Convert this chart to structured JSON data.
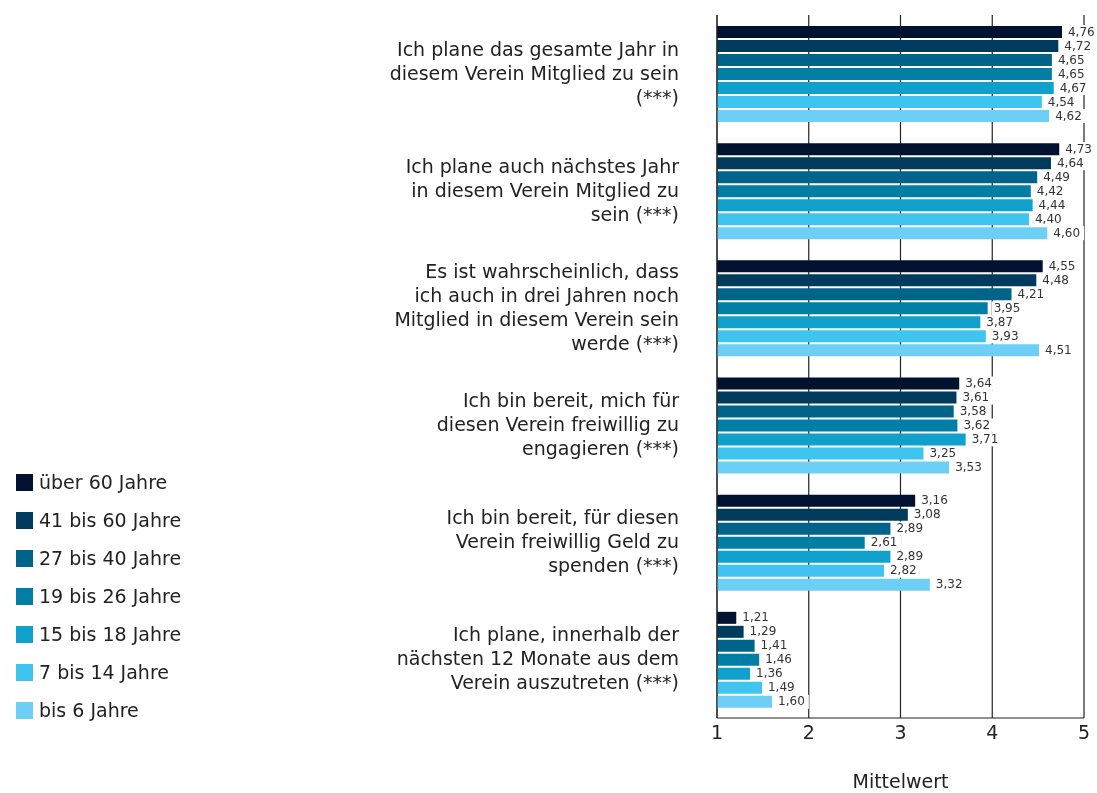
{
  "chart_data": {
    "type": "bar",
    "orientation": "horizontal",
    "xlabel": "Mittelwert",
    "categories": [
      "Ich plane das gesamte Jahr in diesem Verein Mitglied zu sein (***)",
      "Ich plane auch nächstes Jahr in diesem Verein Mitglied zu sein (***)",
      "Es ist wahrscheinlich, dass ich auch in drei Jahren noch Mitglied in diesem Verein sein werde (***)",
      "Ich bin bereit, mich für diesen Verein freiwillig zu engagieren (***)",
      "Ich bin bereit, für diesen Verein freiwillig Geld zu spenden (***)",
      "Ich plane, innerhalb der nächsten 12 Monate aus dem Verein auszutreten (***)"
    ],
    "series": [
      {
        "name": "über 60 Jahre",
        "color": "#00122f",
        "values": [
          4.76,
          4.73,
          4.55,
          3.64,
          3.16,
          1.21
        ],
        "value_labels": [
          "4,76",
          "4,73",
          "4,55",
          "3,64",
          "3,16",
          "1,21"
        ]
      },
      {
        "name": "41 bis 60 Jahre",
        "color": "#003a5d",
        "values": [
          4.72,
          4.64,
          4.48,
          3.61,
          3.08,
          1.29
        ],
        "value_labels": [
          "4,72",
          "4,64",
          "4,48",
          "3,61",
          "3,08",
          "1,29"
        ]
      },
      {
        "name": "27 bis 40 Jahre",
        "color": "#006389",
        "values": [
          4.65,
          4.49,
          4.21,
          3.58,
          2.89,
          1.41
        ],
        "value_labels": [
          "4,65",
          "4,49",
          "4,21",
          "3,58",
          "2,89",
          "1,41"
        ]
      },
      {
        "name": "19 bis 26 Jahre",
        "color": "#007ea6",
        "values": [
          4.65,
          4.42,
          3.95,
          3.62,
          2.61,
          1.46
        ],
        "value_labels": [
          "4,65",
          "4,42",
          "3,95",
          "3,62",
          "2,61",
          "1,46"
        ]
      },
      {
        "name": "15 bis 18 Jahre",
        "color": "#10a0cc",
        "values": [
          4.67,
          4.44,
          3.87,
          3.71,
          2.89,
          1.36
        ],
        "value_labels": [
          "4,67",
          "4,44",
          "3,87",
          "3,71",
          "2,89",
          "1,36"
        ]
      },
      {
        "name": "7 bis 14 Jahre",
        "color": "#3fc4f0",
        "values": [
          4.54,
          4.4,
          3.93,
          3.25,
          2.82,
          1.49
        ],
        "value_labels": [
          "4,54",
          "4,40",
          "3,93",
          "3,25",
          "2,82",
          "1,49"
        ]
      },
      {
        "name": "bis 6 Jahre",
        "color": "#6dcff6",
        "values": [
          4.62,
          4.6,
          4.51,
          3.53,
          3.32,
          1.6
        ],
        "value_labels": [
          "4,62",
          "4,60",
          "4,51",
          "3,53",
          "3,32",
          "1,60"
        ]
      }
    ],
    "xlim": [
      1,
      5
    ],
    "xticks": [
      1,
      2,
      3,
      4,
      5
    ],
    "grid": "x",
    "legend": "left"
  }
}
